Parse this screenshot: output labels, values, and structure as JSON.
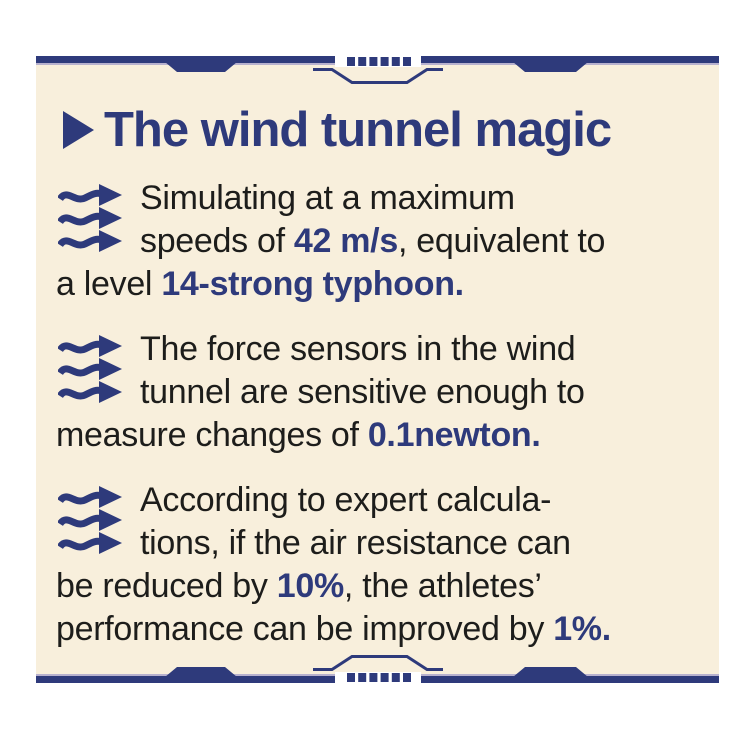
{
  "colors": {
    "navy": "#2e3a7b",
    "cream": "#f8efdc",
    "ink": "#1d1d1b",
    "page_bg": "#ffffff",
    "edge_lavender": "#b7b1ce"
  },
  "card": {
    "title": "The wind tunnel magic",
    "paragraphs": [
      {
        "lines": [
          {
            "indent": true,
            "segments": [
              {
                "t": "Simulating at a maximum",
                "b": false
              }
            ]
          },
          {
            "indent": true,
            "segments": [
              {
                "t": "speeds of ",
                "b": false
              },
              {
                "t": "42 m/s",
                "b": true
              },
              {
                "t": ", equivalent to",
                "b": false
              }
            ]
          },
          {
            "indent": false,
            "segments": [
              {
                "t": "a level ",
                "b": false
              },
              {
                "t": "14-strong typhoon.",
                "b": true
              }
            ]
          }
        ]
      },
      {
        "lines": [
          {
            "indent": true,
            "segments": [
              {
                "t": "The force sensors in the wind",
                "b": false
              }
            ]
          },
          {
            "indent": true,
            "segments": [
              {
                "t": "tunnel are sensitive enough to",
                "b": false
              }
            ]
          },
          {
            "indent": false,
            "segments": [
              {
                "t": "measure changes of ",
                "b": false
              },
              {
                "t": "0.1newton.",
                "b": true
              }
            ]
          }
        ]
      },
      {
        "lines": [
          {
            "indent": true,
            "segments": [
              {
                "t": "According to expert calcula-",
                "b": false
              }
            ]
          },
          {
            "indent": true,
            "segments": [
              {
                "t": "tions, if the air resistance can",
                "b": false
              }
            ]
          },
          {
            "indent": false,
            "segments": [
              {
                "t": "be reduced by ",
                "b": false
              },
              {
                "t": "10%",
                "b": true
              },
              {
                "t": ", the athletes’",
                "b": false
              }
            ]
          },
          {
            "indent": false,
            "segments": [
              {
                "t": "performance can be improved by ",
                "b": false
              },
              {
                "t": "1%.",
                "b": true
              }
            ]
          }
        ]
      }
    ]
  },
  "decor": {
    "dots_count": 6
  }
}
